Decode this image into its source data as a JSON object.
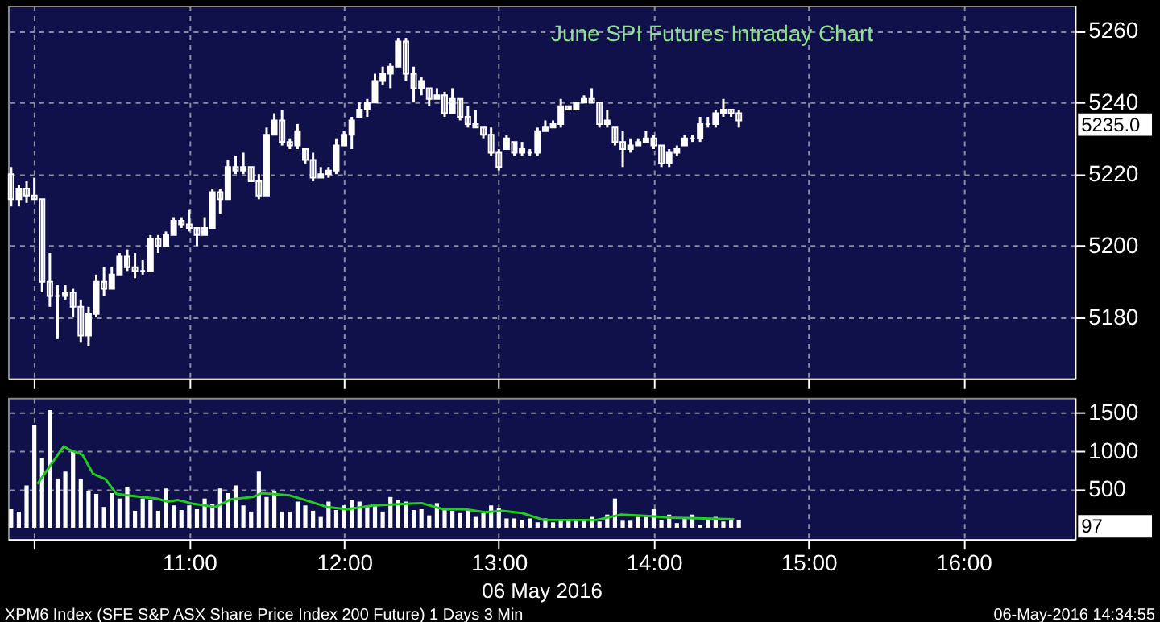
{
  "chart_data": [
    {
      "type": "candlestick",
      "title": "June SPI Futures Intraday Chart",
      "color": "#ffffff",
      "x": [
        9.85,
        9.9,
        9.95,
        10,
        10.05,
        10.1,
        10.15,
        10.2,
        10.25,
        10.3,
        10.35,
        10.4,
        10.45,
        10.5,
        10.55,
        10.6,
        10.65,
        10.7,
        10.75,
        10.8,
        10.85,
        10.9,
        10.95,
        11,
        11.05,
        11.1,
        11.15,
        11.2,
        11.25,
        11.3,
        11.35,
        11.4,
        11.45,
        11.5,
        11.55,
        11.6,
        11.65,
        11.7,
        11.75,
        11.8,
        11.85,
        11.9,
        11.95,
        12,
        12.05,
        12.1,
        12.15,
        12.2,
        12.25,
        12.3,
        12.35,
        12.4,
        12.45,
        12.5,
        12.55,
        12.6,
        12.65,
        12.7,
        12.75,
        12.8,
        12.85,
        12.9,
        12.95,
        13,
        13.05,
        13.1,
        13.15,
        13.2,
        13.25,
        13.3,
        13.35,
        13.4,
        13.45,
        13.5,
        13.55,
        13.6,
        13.65,
        13.7,
        13.75,
        13.8,
        13.85,
        13.9,
        13.95,
        14,
        14.05,
        14.1,
        14.15,
        14.2,
        14.25,
        14.3,
        14.35,
        14.4,
        14.45,
        14.5,
        14.55
      ],
      "ohlc": [
        [
          5220,
          5222,
          5211,
          5213
        ],
        [
          5213,
          5217,
          5211,
          5216
        ],
        [
          5216,
          5218,
          5212,
          5214
        ],
        [
          5214,
          5219,
          5213,
          5213
        ],
        [
          5213,
          5213,
          5187,
          5190
        ],
        [
          5190,
          5198,
          5183,
          5186
        ],
        [
          5186,
          5189,
          5174,
          5186
        ],
        [
          5186,
          5189,
          5185,
          5187
        ],
        [
          5187,
          5188,
          5180,
          5183
        ],
        [
          5183,
          5185,
          5173,
          5175
        ],
        [
          5175,
          5183,
          5172,
          5181
        ],
        [
          5181,
          5192,
          5180,
          5190
        ],
        [
          5190,
          5194,
          5186,
          5188
        ],
        [
          5188,
          5194,
          5188,
          5192
        ],
        [
          5192,
          5198,
          5192,
          5197
        ],
        [
          5197,
          5199,
          5193,
          5194
        ],
        [
          5194,
          5198,
          5191,
          5193
        ],
        [
          5193,
          5196,
          5192,
          5193
        ],
        [
          5193,
          5203,
          5193,
          5202
        ],
        [
          5202,
          5203,
          5198,
          5200
        ],
        [
          5200,
          5204,
          5200,
          5203
        ],
        [
          5203,
          5208,
          5203,
          5207
        ],
        [
          5207,
          5208,
          5205,
          5206
        ],
        [
          5206,
          5210,
          5204,
          5205
        ],
        [
          5205,
          5205,
          5200,
          5203
        ],
        [
          5203,
          5208,
          5203,
          5205
        ],
        [
          5205,
          5216,
          5205,
          5215
        ],
        [
          5215,
          5216,
          5209,
          5213
        ],
        [
          5213,
          5224,
          5213,
          5222
        ],
        [
          5222,
          5225,
          5220,
          5221
        ],
        [
          5221,
          5226,
          5220,
          5222
        ],
        [
          5222,
          5222,
          5218,
          5218
        ],
        [
          5218,
          5220,
          5213,
          5214
        ],
        [
          5214,
          5233,
          5214,
          5231
        ],
        [
          5231,
          5237,
          5231,
          5235
        ],
        [
          5235,
          5238,
          5228,
          5229
        ],
        [
          5229,
          5230,
          5227,
          5228
        ],
        [
          5228,
          5234,
          5227,
          5232
        ],
        [
          5227,
          5227,
          5223,
          5224
        ],
        [
          5224,
          5226,
          5218,
          5219
        ],
        [
          5219,
          5222,
          5219,
          5220
        ],
        [
          5220,
          5222,
          5219,
          5221
        ],
        [
          5221,
          5230,
          5220,
          5228
        ],
        [
          5228,
          5232,
          5228,
          5231
        ],
        [
          5231,
          5236,
          5227,
          5235
        ],
        [
          5236,
          5240,
          5236,
          5238
        ],
        [
          5238,
          5241,
          5236,
          5240
        ],
        [
          5240,
          5248,
          5240,
          5246
        ],
        [
          5246,
          5250,
          5245,
          5248
        ],
        [
          5248,
          5251,
          5244,
          5250
        ],
        [
          5250,
          5258,
          5250,
          5257
        ],
        [
          5257,
          5258,
          5246,
          5248
        ],
        [
          5248,
          5250,
          5240,
          5244
        ],
        [
          5244,
          5247,
          5242,
          5246
        ],
        [
          5244,
          5244,
          5239,
          5241
        ],
        [
          5241,
          5244,
          5241,
          5242
        ],
        [
          5242,
          5243,
          5236,
          5237
        ],
        [
          5237,
          5244,
          5237,
          5241
        ],
        [
          5241,
          5241,
          5235,
          5236
        ],
        [
          5236,
          5239,
          5233,
          5234
        ],
        [
          5234,
          5238,
          5233,
          5233
        ],
        [
          5233,
          5233,
          5230,
          5231
        ],
        [
          5231,
          5233,
          5225,
          5226
        ],
        [
          5226,
          5227,
          5221,
          5222
        ],
        [
          5227,
          5231,
          5227,
          5230
        ],
        [
          5229,
          5229,
          5225,
          5226
        ],
        [
          5226,
          5229,
          5225,
          5227
        ],
        [
          5226,
          5227,
          5225,
          5226
        ],
        [
          5226,
          5233,
          5225,
          5232
        ],
        [
          5232,
          5235,
          5232,
          5233
        ],
        [
          5233,
          5235,
          5233,
          5234
        ],
        [
          5234,
          5241,
          5233,
          5239
        ],
        [
          5239,
          5239,
          5238,
          5238
        ],
        [
          5238,
          5240,
          5238,
          5240
        ],
        [
          5240,
          5242,
          5240,
          5241
        ],
        [
          5241,
          5244,
          5240,
          5240
        ],
        [
          5240,
          5240,
          5233,
          5234
        ],
        [
          5234,
          5238,
          5233,
          5235
        ],
        [
          5233,
          5233,
          5228,
          5229
        ],
        [
          5229,
          5232,
          5222,
          5227
        ],
        [
          5227,
          5230,
          5226,
          5228
        ],
        [
          5228,
          5230,
          5228,
          5229
        ],
        [
          5229,
          5232,
          5229,
          5230
        ],
        [
          5230,
          5231,
          5227,
          5228
        ],
        [
          5228,
          5228,
          5222,
          5223
        ],
        [
          5223,
          5227,
          5222,
          5226
        ],
        [
          5226,
          5228,
          5225,
          5227
        ],
        [
          5228,
          5231,
          5228,
          5230
        ],
        [
          5230,
          5231,
          5229,
          5230
        ],
        [
          5230,
          5236,
          5229,
          5234
        ],
        [
          5234,
          5236,
          5233,
          5234
        ],
        [
          5234,
          5238,
          5233,
          5237
        ],
        [
          5237,
          5241,
          5236,
          5238
        ],
        [
          5238,
          5238,
          5236,
          5237
        ],
        [
          5237,
          5238,
          5233,
          5235
        ]
      ],
      "xlim": [
        9.83,
        16.72
      ],
      "xticks": [
        {
          "value": 10,
          "label": null
        },
        {
          "value": 11,
          "label": null
        },
        {
          "value": 12,
          "label": null
        },
        {
          "value": 13,
          "label": null
        },
        {
          "value": 14,
          "label": null
        },
        {
          "value": 15,
          "label": null
        },
        {
          "value": 16,
          "label": null
        }
      ],
      "ylim": [
        5163,
        5267
      ],
      "yticks": [
        5180,
        5200,
        5220,
        5240,
        5260
      ],
      "tick_labels": "y",
      "grid": true,
      "annotations": [
        "5235.0"
      ]
    },
    {
      "type": "bar",
      "xlabel": "06 May 2016",
      "x": [
        9.85,
        9.9,
        9.95,
        10,
        10.05,
        10.1,
        10.15,
        10.2,
        10.25,
        10.3,
        10.35,
        10.4,
        10.45,
        10.5,
        10.55,
        10.6,
        10.65,
        10.7,
        10.75,
        10.8,
        10.85,
        10.9,
        10.95,
        11,
        11.05,
        11.1,
        11.15,
        11.2,
        11.25,
        11.3,
        11.35,
        11.4,
        11.45,
        11.5,
        11.55,
        11.6,
        11.65,
        11.7,
        11.75,
        11.8,
        11.85,
        11.9,
        11.95,
        12,
        12.05,
        12.1,
        12.15,
        12.2,
        12.25,
        12.3,
        12.35,
        12.4,
        12.45,
        12.5,
        12.55,
        12.6,
        12.65,
        12.7,
        12.75,
        12.8,
        12.85,
        12.9,
        12.95,
        13,
        13.05,
        13.1,
        13.15,
        13.2,
        13.25,
        13.3,
        13.35,
        13.4,
        13.45,
        13.5,
        13.55,
        13.6,
        13.65,
        13.7,
        13.75,
        13.8,
        13.85,
        13.9,
        13.95,
        14,
        14.05,
        14.1,
        14.15,
        14.2,
        14.25,
        14.3,
        14.35,
        14.4,
        14.45,
        14.5,
        14.55
      ],
      "series": [
        {
          "type": "bar",
          "color": "#ffffff",
          "values": [
            240,
            210,
            550,
            1340,
            910,
            1530,
            640,
            730,
            990,
            630,
            480,
            440,
            270,
            450,
            380,
            530,
            220,
            380,
            360,
            220,
            510,
            290,
            230,
            290,
            240,
            380,
            310,
            510,
            450,
            550,
            290,
            210,
            730,
            400,
            470,
            210,
            210,
            340,
            290,
            220,
            140,
            340,
            230,
            290,
            360,
            340,
            290,
            310,
            210,
            400,
            360,
            340,
            230,
            240,
            160,
            320,
            240,
            220,
            190,
            240,
            140,
            190,
            290,
            260,
            120,
            120,
            100,
            120,
            70,
            120,
            70,
            90,
            90,
            90,
            90,
            140,
            80,
            170,
            380,
            90,
            90,
            140,
            140,
            240,
            100,
            170,
            60,
            120,
            170,
            40,
            120,
            140,
            80,
            100,
            97
          ]
        },
        {
          "type": "line",
          "color": "#22cc22",
          "x": [
            10.02,
            10.19,
            10.22,
            10.31,
            10.38,
            10.46,
            10.53,
            10.69,
            10.79,
            10.86,
            10.93,
            11.03,
            11.17,
            11.27,
            11.41,
            11.47,
            11.65,
            11.75,
            11.89,
            12.02,
            12.19,
            12.5,
            12.64,
            12.78,
            12.91,
            13.02,
            13.15,
            13.29,
            13.63,
            13.79,
            13.97,
            14.11,
            14.32,
            14.52
          ],
          "values": [
            570,
            1060,
            1020,
            950,
            700,
            630,
            440,
            400,
            380,
            340,
            360,
            310,
            270,
            370,
            400,
            450,
            420,
            360,
            270,
            240,
            290,
            320,
            240,
            240,
            200,
            220,
            190,
            100,
            100,
            170,
            150,
            130,
            120,
            110
          ]
        }
      ],
      "xlim": [
        9.83,
        16.72
      ],
      "xticks": [
        {
          "value": 10,
          "label": null
        },
        {
          "value": 11,
          "label": "11:00"
        },
        {
          "value": 12,
          "label": "12:00"
        },
        {
          "value": 13,
          "label": "13:00"
        },
        {
          "value": 14,
          "label": "14:00"
        },
        {
          "value": 15,
          "label": "15:00"
        },
        {
          "value": 16,
          "label": "16:00"
        }
      ],
      "ylim": [
        -150,
        1690
      ],
      "yticks": [
        500,
        1000,
        1500
      ],
      "grid": true,
      "annotations": [
        "97",
        "XPM6 Index (SFE S&P ASX Share Price Index 200 Future) 1 Days 3 Min",
        "06-May-2016 14:34:55"
      ]
    }
  ]
}
